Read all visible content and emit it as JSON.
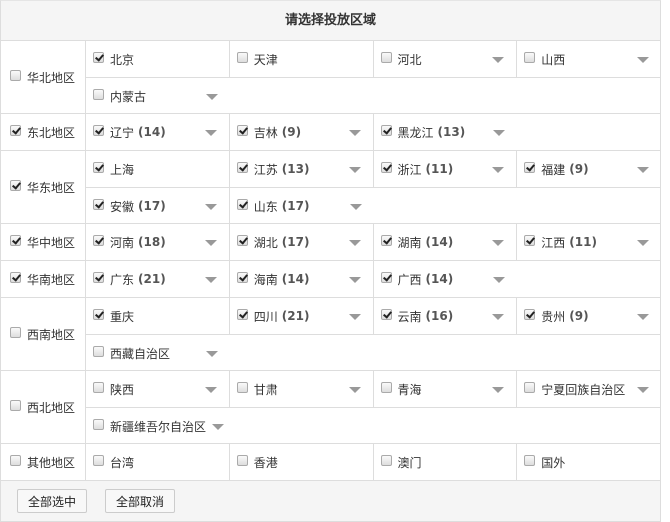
{
  "title": "请选择投放区域",
  "regions": [
    {
      "name": "华北地区",
      "checked": false,
      "lines": [
        [
          {
            "n": "北京",
            "c": true,
            "dd": false
          },
          {
            "n": "天津",
            "c": false,
            "dd": false
          },
          {
            "n": "河北",
            "c": false,
            "dd": true
          },
          {
            "n": "山西",
            "c": false,
            "dd": true
          }
        ],
        [
          {
            "n": "内蒙古",
            "c": false,
            "dd": true
          }
        ]
      ]
    },
    {
      "name": "东北地区",
      "checked": true,
      "lines": [
        [
          {
            "n": "辽宁",
            "k": "(14)",
            "c": true,
            "dd": true
          },
          {
            "n": "吉林",
            "k": "(9)",
            "c": true,
            "dd": true
          },
          {
            "n": "黑龙江",
            "k": "(13)",
            "c": true,
            "dd": true
          }
        ]
      ]
    },
    {
      "name": "华东地区",
      "checked": true,
      "lines": [
        [
          {
            "n": "上海",
            "c": true,
            "dd": false
          },
          {
            "n": "江苏",
            "k": "(13)",
            "c": true,
            "dd": true
          },
          {
            "n": "浙江",
            "k": "(11)",
            "c": true,
            "dd": true
          },
          {
            "n": "福建",
            "k": "(9)",
            "c": true,
            "dd": true
          }
        ],
        [
          {
            "n": "安徽",
            "k": "(17)",
            "c": true,
            "dd": true
          },
          {
            "n": "山东",
            "k": "(17)",
            "c": true,
            "dd": true
          }
        ]
      ]
    },
    {
      "name": "华中地区",
      "checked": true,
      "lines": [
        [
          {
            "n": "河南",
            "k": "(18)",
            "c": true,
            "dd": true
          },
          {
            "n": "湖北",
            "k": "(17)",
            "c": true,
            "dd": true
          },
          {
            "n": "湖南",
            "k": "(14)",
            "c": true,
            "dd": true
          },
          {
            "n": "江西",
            "k": "(11)",
            "c": true,
            "dd": true
          }
        ]
      ]
    },
    {
      "name": "华南地区",
      "checked": true,
      "lines": [
        [
          {
            "n": "广东",
            "k": "(21)",
            "c": true,
            "dd": true
          },
          {
            "n": "海南",
            "k": "(14)",
            "c": true,
            "dd": true
          },
          {
            "n": "广西",
            "k": "(14)",
            "c": true,
            "dd": true
          }
        ]
      ]
    },
    {
      "name": "西南地区",
      "checked": false,
      "lines": [
        [
          {
            "n": "重庆",
            "c": true,
            "dd": false
          },
          {
            "n": "四川",
            "k": "(21)",
            "c": true,
            "dd": true
          },
          {
            "n": "云南",
            "k": "(16)",
            "c": true,
            "dd": true
          },
          {
            "n": "贵州",
            "k": "(9)",
            "c": true,
            "dd": true
          }
        ],
        [
          {
            "n": "西藏自治区",
            "c": false,
            "dd": true
          }
        ]
      ]
    },
    {
      "name": "西北地区",
      "checked": false,
      "lines": [
        [
          {
            "n": "陕西",
            "c": false,
            "dd": true
          },
          {
            "n": "甘肃",
            "c": false,
            "dd": true
          },
          {
            "n": "青海",
            "c": false,
            "dd": true
          },
          {
            "n": "宁夏回族自治区",
            "c": false,
            "dd": true
          }
        ],
        [
          {
            "n": "新疆维吾尔自治区",
            "c": false,
            "dd": true,
            "inline": true
          }
        ]
      ]
    },
    {
      "name": "其他地区",
      "checked": false,
      "lines": [
        [
          {
            "n": "台湾",
            "c": false,
            "dd": false
          },
          {
            "n": "香港",
            "c": false,
            "dd": false
          },
          {
            "n": "澳门",
            "c": false,
            "dd": false
          },
          {
            "n": "国外",
            "c": false,
            "dd": false
          }
        ]
      ]
    }
  ],
  "buttons": {
    "select_all": "全部选中",
    "deselect_all": "全部取消"
  }
}
